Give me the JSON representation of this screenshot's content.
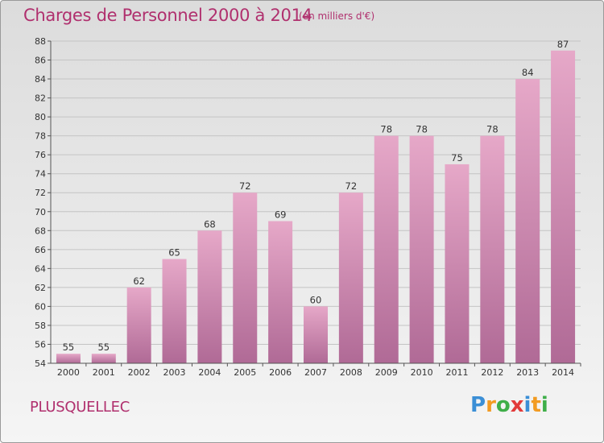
{
  "title": "Charges de Personnel 2000 à 2014",
  "subtitle": "(en milliers d'€)",
  "commune": "PLUSQUELLEC",
  "logo": {
    "letters": [
      "P",
      "r",
      "o",
      "x",
      "i",
      "t",
      "i"
    ],
    "colors": [
      "#3b8fd6",
      "#f29b22",
      "#3fae49",
      "#e23a3a",
      "#3b8fd6",
      "#f29b22",
      "#3fae49"
    ]
  },
  "colors": {
    "bar": "#d88ab4",
    "bar_dark": "#b5699a",
    "text_accent": "#b0306e"
  },
  "chart_data": {
    "type": "bar",
    "categories": [
      "2000",
      "2001",
      "2002",
      "2003",
      "2004",
      "2005",
      "2006",
      "2007",
      "2008",
      "2009",
      "2010",
      "2011",
      "2012",
      "2013",
      "2014"
    ],
    "values": [
      55,
      55,
      62,
      65,
      68,
      72,
      69,
      60,
      72,
      78,
      78,
      75,
      78,
      84,
      87
    ],
    "title": "Charges de Personnel 2000 à 2014",
    "ylabel": "",
    "xlabel": "",
    "ylim": [
      54,
      88
    ],
    "yticks": [
      54,
      56,
      58,
      60,
      62,
      64,
      66,
      68,
      70,
      72,
      74,
      76,
      78,
      80,
      82,
      84,
      86,
      88
    ],
    "grid": true,
    "legend": "none"
  }
}
